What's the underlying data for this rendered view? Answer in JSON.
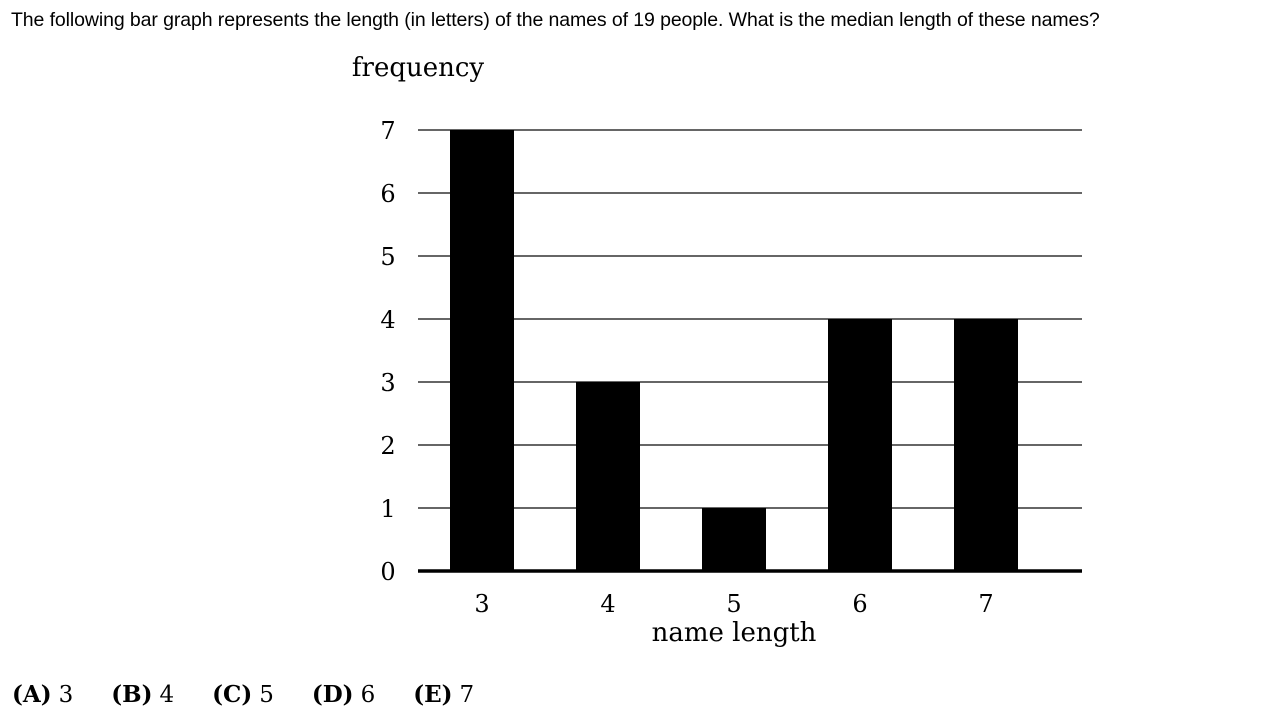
{
  "question": {
    "text": "The following bar graph represents the length (in letters) of the names of 19 people. What is the median length of these names?"
  },
  "chart_data": {
    "type": "bar",
    "title": "",
    "xlabel": "name length",
    "ylabel": "frequency",
    "categories": [
      "3",
      "4",
      "5",
      "6",
      "7"
    ],
    "values": [
      7,
      3,
      1,
      4,
      4
    ],
    "ylim": [
      0,
      7
    ],
    "yticks": [
      0,
      1,
      2,
      3,
      4,
      5,
      6,
      7
    ],
    "grid": true,
    "bar_color": "#000000"
  },
  "answers": [
    {
      "letter": "(A)",
      "value": "3"
    },
    {
      "letter": "(B)",
      "value": "4"
    },
    {
      "letter": "(C)",
      "value": "5"
    },
    {
      "letter": "(D)",
      "value": "6"
    },
    {
      "letter": "(E)",
      "value": "7"
    }
  ]
}
